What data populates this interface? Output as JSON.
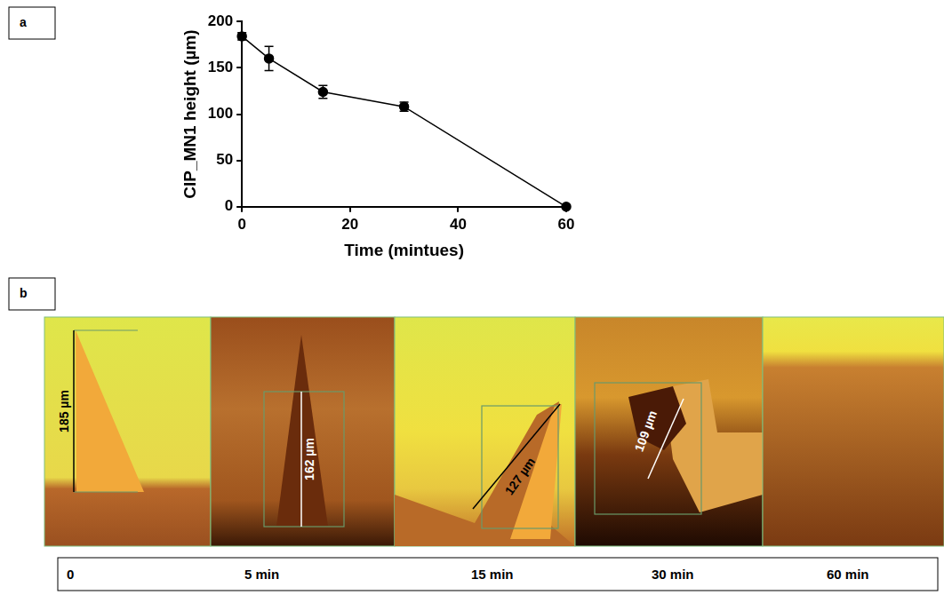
{
  "panel_labels": [
    "a",
    "b"
  ],
  "chart_data": {
    "type": "line",
    "x": [
      0,
      5,
      15,
      30,
      60
    ],
    "values": [
      184,
      160,
      124,
      108,
      0
    ],
    "errors": [
      4,
      13,
      7,
      5,
      1
    ],
    "x_label": "Time (mintues)",
    "y_label": "CIP_MN1 height (µm)",
    "xlim": [
      0,
      60
    ],
    "xticks": [
      0,
      20,
      40,
      60
    ],
    "ylim": [
      0,
      200
    ],
    "yticks": [
      0,
      50,
      100,
      150,
      200
    ],
    "color": "#000000",
    "marker": "circle",
    "line_style": "solid",
    "grid": false
  },
  "image_panel": {
    "images": [
      {
        "time": "0",
        "measurement": "185 µm"
      },
      {
        "time": "5 min",
        "measurement": "162 µm"
      },
      {
        "time": "15 min",
        "measurement": "127 µm"
      },
      {
        "time": "30 min",
        "measurement": "109 µm"
      },
      {
        "time": "60 min"
      }
    ]
  }
}
